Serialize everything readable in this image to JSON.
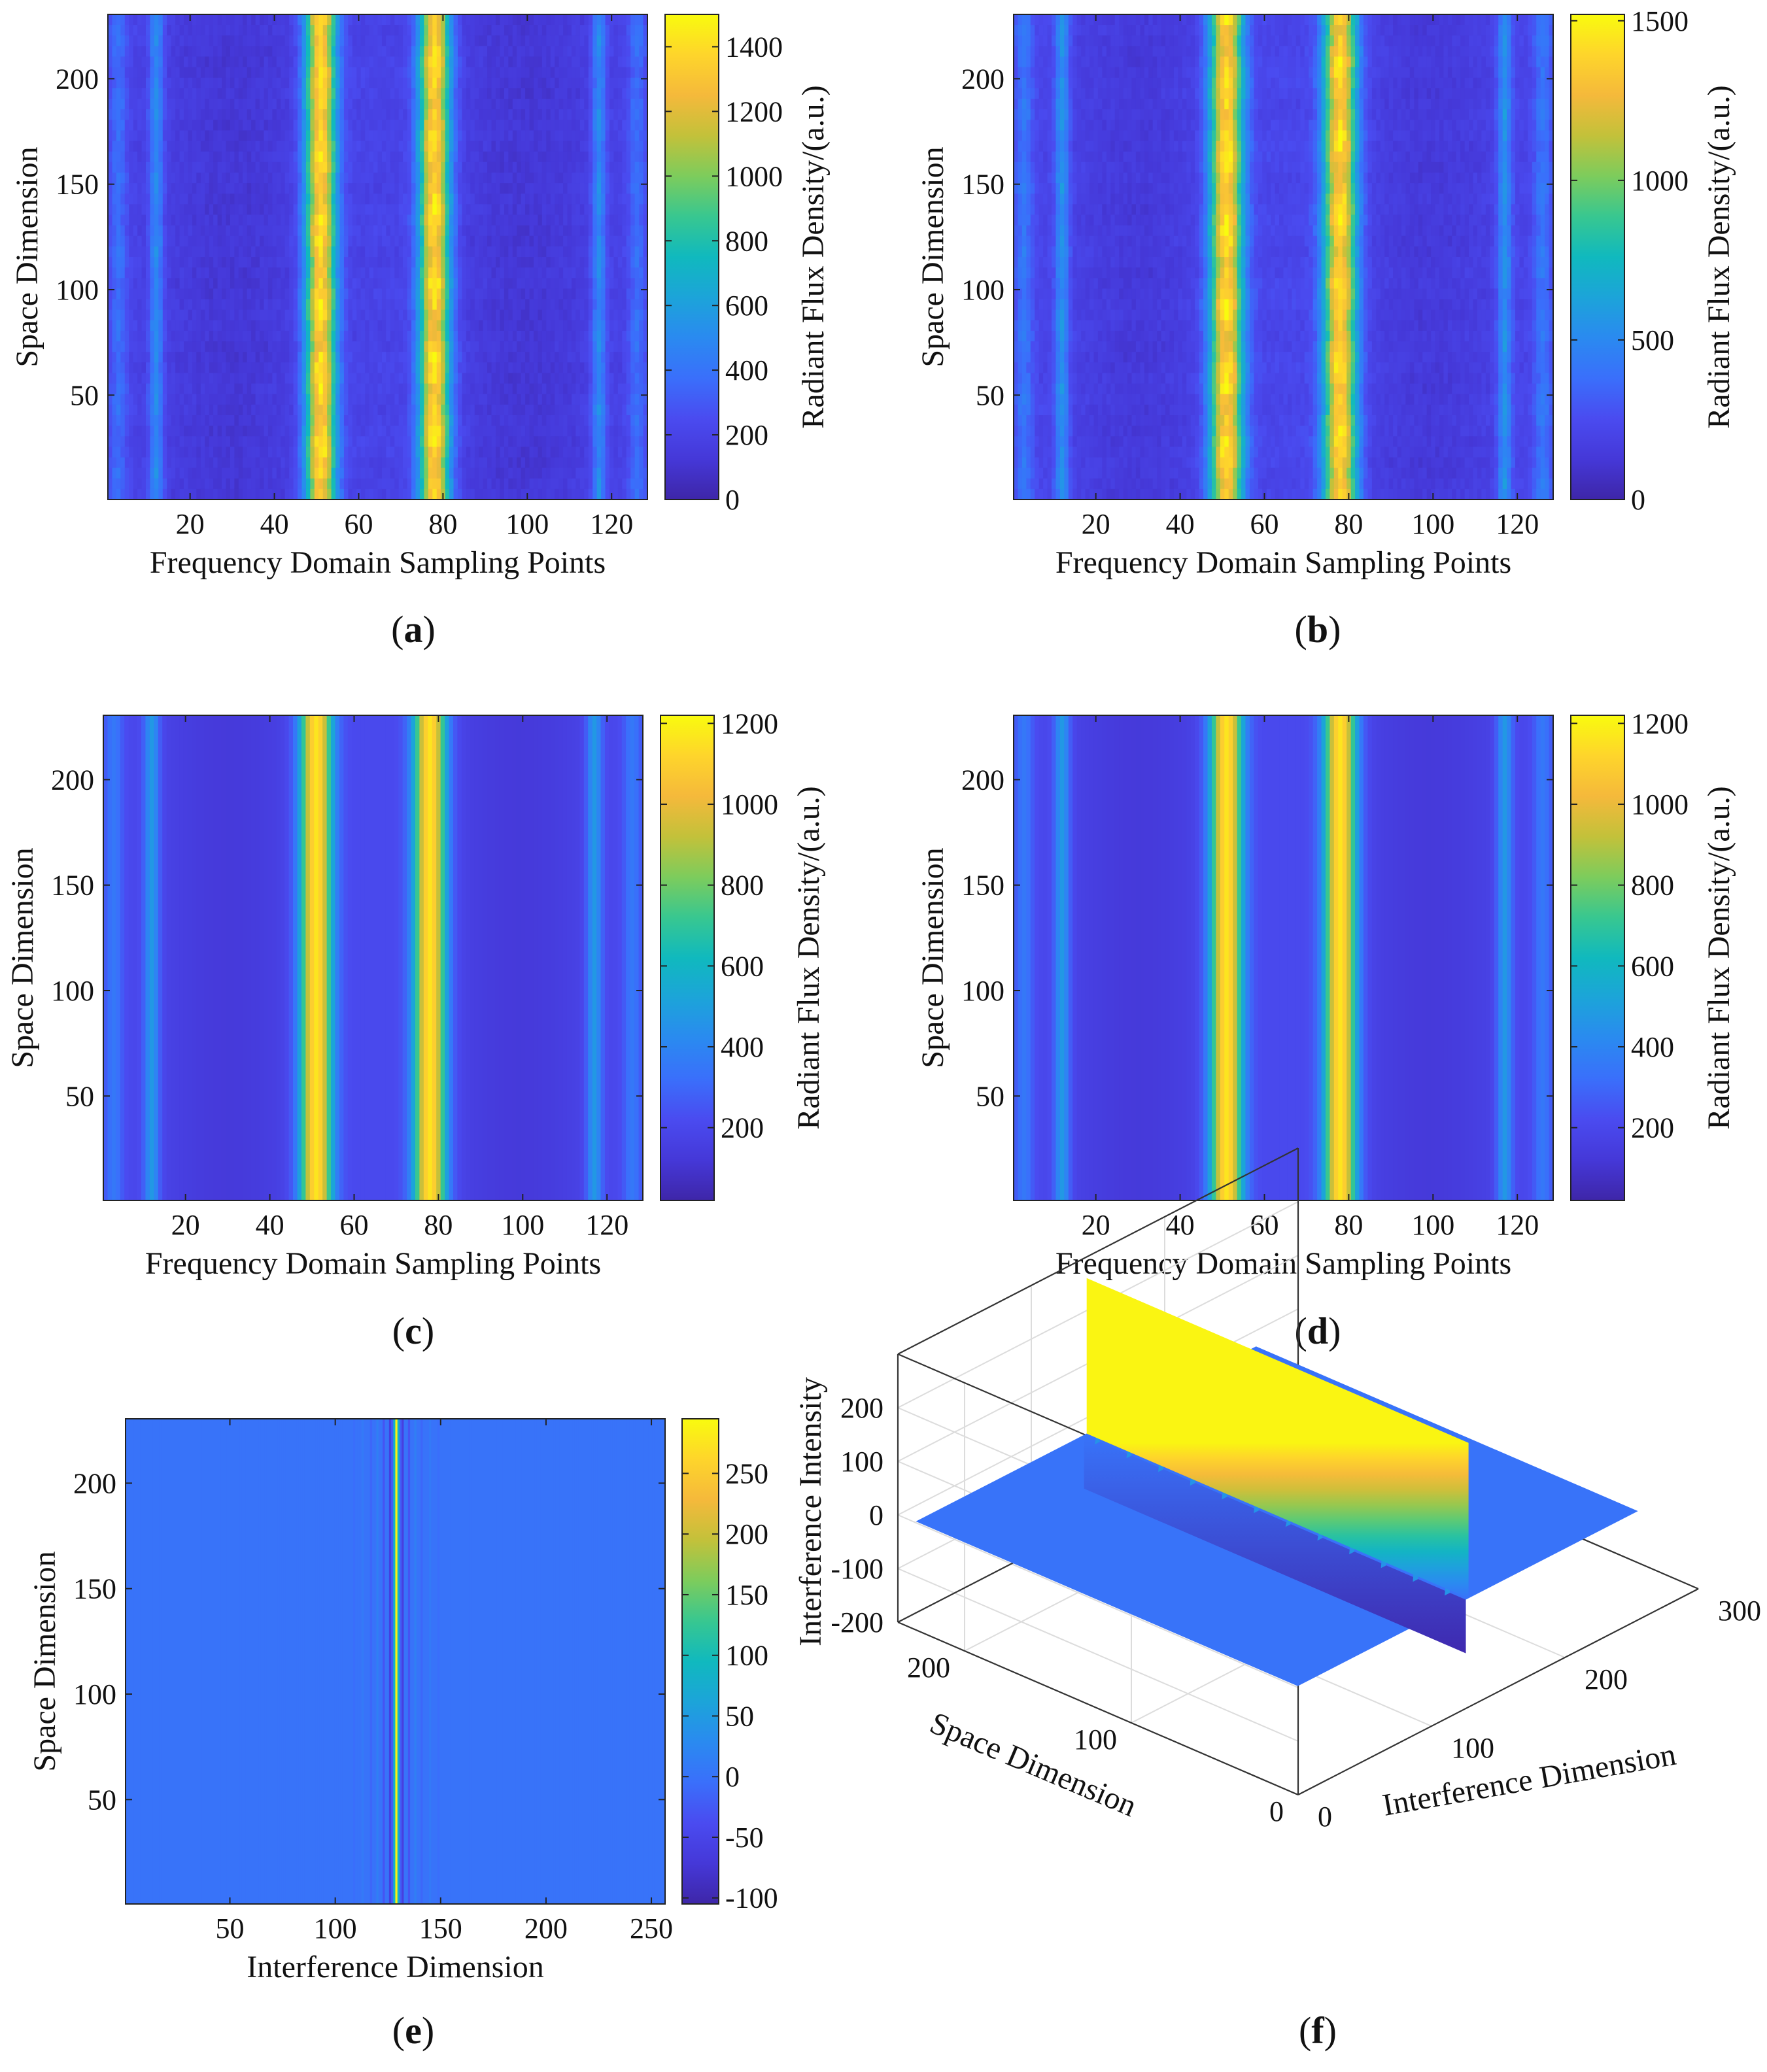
{
  "figure": {
    "colormap": "parula",
    "colormap_stops": [
      "#3e26a8",
      "#4538d8",
      "#4a4bf0",
      "#3a6ffb",
      "#2a8af0",
      "#1ca4d9",
      "#10b9be",
      "#38c790",
      "#7dcc5c",
      "#c3c13a",
      "#f5b93b",
      "#fed52b",
      "#f9fb0e"
    ],
    "background": "#ffffff"
  },
  "chart_data": [
    {
      "id": "a",
      "type": "heatmap",
      "caption": "(a)",
      "caption_letter": "a",
      "xlabel": "Frequency Domain Sampling Points",
      "ylabel": "Space Dimension",
      "colorbar_label": "Radiant Flux Density/(a.u.)",
      "xlim": [
        1,
        128
      ],
      "ylim": [
        1,
        230
      ],
      "clim": [
        0,
        1500
      ],
      "xticks": [
        20,
        40,
        60,
        80,
        100,
        120
      ],
      "yticks": [
        50,
        100,
        150,
        200
      ],
      "cticks": [
        0,
        200,
        400,
        600,
        800,
        1000,
        1200,
        1400
      ],
      "noisy": true,
      "profile_peaks": [
        {
          "x": 51,
          "width": 2.6,
          "value": 1400
        },
        {
          "x": 78,
          "width": 2.6,
          "value": 1400
        },
        {
          "x": 12,
          "width": 1.2,
          "value": 520
        },
        {
          "x": 117,
          "width": 1.2,
          "value": 520
        },
        {
          "x": 3,
          "width": 1.5,
          "value": 380
        },
        {
          "x": 126,
          "width": 1.5,
          "value": 380
        }
      ],
      "baseline": 200
    },
    {
      "id": "b",
      "type": "heatmap",
      "caption": "(b)",
      "caption_letter": "b",
      "xlabel": "Frequency Domain Sampling Points",
      "ylabel": "Space Dimension",
      "colorbar_label": "Radiant Flux Density/(a.u.)",
      "xlim": [
        1,
        128
      ],
      "ylim": [
        1,
        230
      ],
      "clim": [
        0,
        1520
      ],
      "xticks": [
        20,
        40,
        60,
        80,
        100,
        120
      ],
      "yticks": [
        50,
        100,
        150,
        200
      ],
      "cticks": [
        0,
        500,
        1000,
        1500
      ],
      "noisy": true,
      "profile_peaks": [
        {
          "x": 51,
          "width": 2.8,
          "value": 1420
        },
        {
          "x": 78,
          "width": 2.8,
          "value": 1420
        },
        {
          "x": 12,
          "width": 1.2,
          "value": 560
        },
        {
          "x": 117,
          "width": 1.2,
          "value": 560
        },
        {
          "x": 3,
          "width": 1.5,
          "value": 420
        },
        {
          "x": 126,
          "width": 1.5,
          "value": 420
        }
      ],
      "baseline": 220
    },
    {
      "id": "c",
      "type": "heatmap",
      "caption": "(c)",
      "caption_letter": "c",
      "xlabel": "Frequency Domain Sampling Points",
      "ylabel": "Space Dimension",
      "colorbar_label": "Radiant Flux Density/(a.u.)",
      "xlim": [
        1,
        128
      ],
      "ylim": [
        1,
        230
      ],
      "clim": [
        20,
        1220
      ],
      "xticks": [
        20,
        40,
        60,
        80,
        100,
        120
      ],
      "yticks": [
        50,
        100,
        150,
        200
      ],
      "cticks": [
        200,
        400,
        600,
        800,
        1000,
        1200
      ],
      "noisy": false,
      "profile_peaks": [
        {
          "x": 51,
          "width": 2.7,
          "value": 1180
        },
        {
          "x": 78,
          "width": 2.7,
          "value": 1180
        },
        {
          "x": 12,
          "width": 1.3,
          "value": 500
        },
        {
          "x": 117,
          "width": 1.3,
          "value": 500
        },
        {
          "x": 3,
          "width": 1.5,
          "value": 360
        },
        {
          "x": 126,
          "width": 1.5,
          "value": 360
        }
      ],
      "baseline": 210
    },
    {
      "id": "d",
      "type": "heatmap",
      "caption": "(d)",
      "caption_letter": "d",
      "xlabel": "Frequency Domain Sampling Points",
      "ylabel": "Space Dimension",
      "colorbar_label": "Radiant Flux Density/(a.u.)",
      "xlim": [
        1,
        128
      ],
      "ylim": [
        1,
        230
      ],
      "clim": [
        20,
        1220
      ],
      "xticks": [
        20,
        40,
        60,
        80,
        100,
        120
      ],
      "yticks": [
        50,
        100,
        150,
        200
      ],
      "cticks": [
        200,
        400,
        600,
        800,
        1000,
        1200
      ],
      "noisy": false,
      "profile_peaks": [
        {
          "x": 51,
          "width": 2.7,
          "value": 1180
        },
        {
          "x": 78,
          "width": 2.7,
          "value": 1180
        },
        {
          "x": 12,
          "width": 1.3,
          "value": 500
        },
        {
          "x": 117,
          "width": 1.3,
          "value": 500
        },
        {
          "x": 3,
          "width": 1.5,
          "value": 360
        },
        {
          "x": 126,
          "width": 1.5,
          "value": 360
        }
      ],
      "baseline": 210
    },
    {
      "id": "e",
      "type": "heatmap",
      "caption": "(e)",
      "caption_letter": "e",
      "xlabel": "Interference Dimension",
      "ylabel": "Space Dimension",
      "colorbar_label": "",
      "xlim": [
        1,
        256
      ],
      "ylim": [
        1,
        230
      ],
      "clim": [
        -105,
        295
      ],
      "xticks": [
        50,
        100,
        150,
        200,
        250
      ],
      "yticks": [
        50,
        100,
        150,
        200
      ],
      "cticks": [
        -100,
        -50,
        0,
        50,
        100,
        150,
        200,
        250
      ],
      "interferogram": {
        "zpd": 129,
        "peak": 290,
        "side_values": [
          [
            126,
            -60
          ],
          [
            127,
            -20
          ],
          [
            128,
            80
          ],
          [
            130,
            80
          ],
          [
            131,
            -20
          ],
          [
            132,
            -60
          ],
          [
            123,
            -30
          ],
          [
            135,
            -30
          ],
          [
            120,
            15
          ],
          [
            138,
            15
          ],
          [
            117,
            -12
          ],
          [
            141,
            -12
          ],
          [
            113,
            8
          ],
          [
            145,
            8
          ],
          [
            109,
            -6
          ],
          [
            149,
            -6
          ]
        ],
        "baseline": 0
      }
    },
    {
      "id": "f",
      "type": "surface3d",
      "caption": "(f)",
      "caption_letter": "f",
      "xlabel": "Interference Dimension",
      "ylabel": "Space Dimension",
      "zlabel": "Interference Intensity",
      "xlim": [
        0,
        300
      ],
      "ylim": [
        0,
        240
      ],
      "zlim": [
        -200,
        300
      ],
      "xticks": [
        0,
        100,
        200,
        300
      ],
      "yticks": [
        0,
        100,
        200
      ],
      "zticks": [
        -200,
        -100,
        0,
        100,
        200
      ],
      "clim": [
        -105,
        295
      ],
      "ridge": {
        "x": 129,
        "peak": 290,
        "trough": -100,
        "x_start": 1,
        "x_end": 256,
        "y_start": 1,
        "y_end": 230
      }
    }
  ]
}
